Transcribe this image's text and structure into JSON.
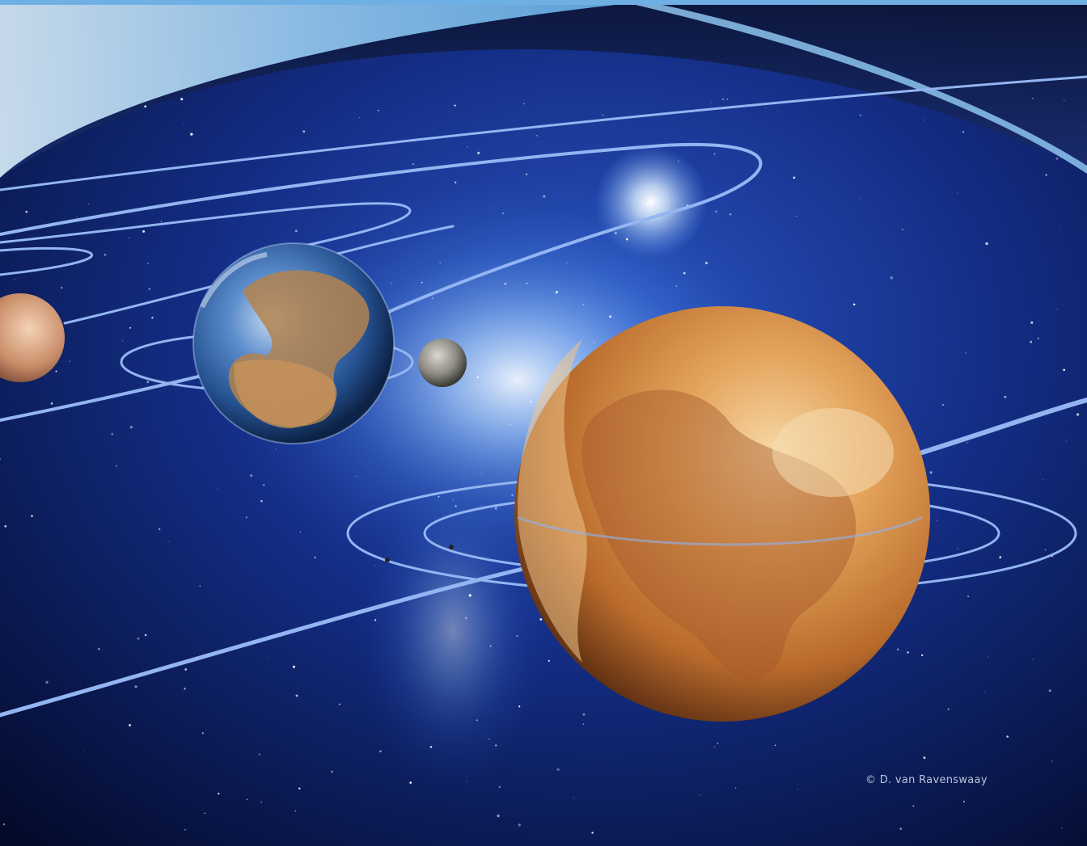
{
  "credit": {
    "text": "© D. van Ravenswaay"
  },
  "colors": {
    "space_deep": "#030a2a",
    "space_blue": "#1c3fa8",
    "nebula": "#bfe0ff",
    "orbit_line": "#8fb2f0",
    "earth_ocean": "#2b5fa8",
    "earth_land": "#b3824f",
    "mars": "#d98c3a",
    "moon": "#8f8f8a",
    "venus": "#c98c68",
    "top_band": "#7fb8e6"
  },
  "bodies": [
    {
      "name": "Venus"
    },
    {
      "name": "Earth"
    },
    {
      "name": "Moon"
    },
    {
      "name": "Mars"
    }
  ]
}
